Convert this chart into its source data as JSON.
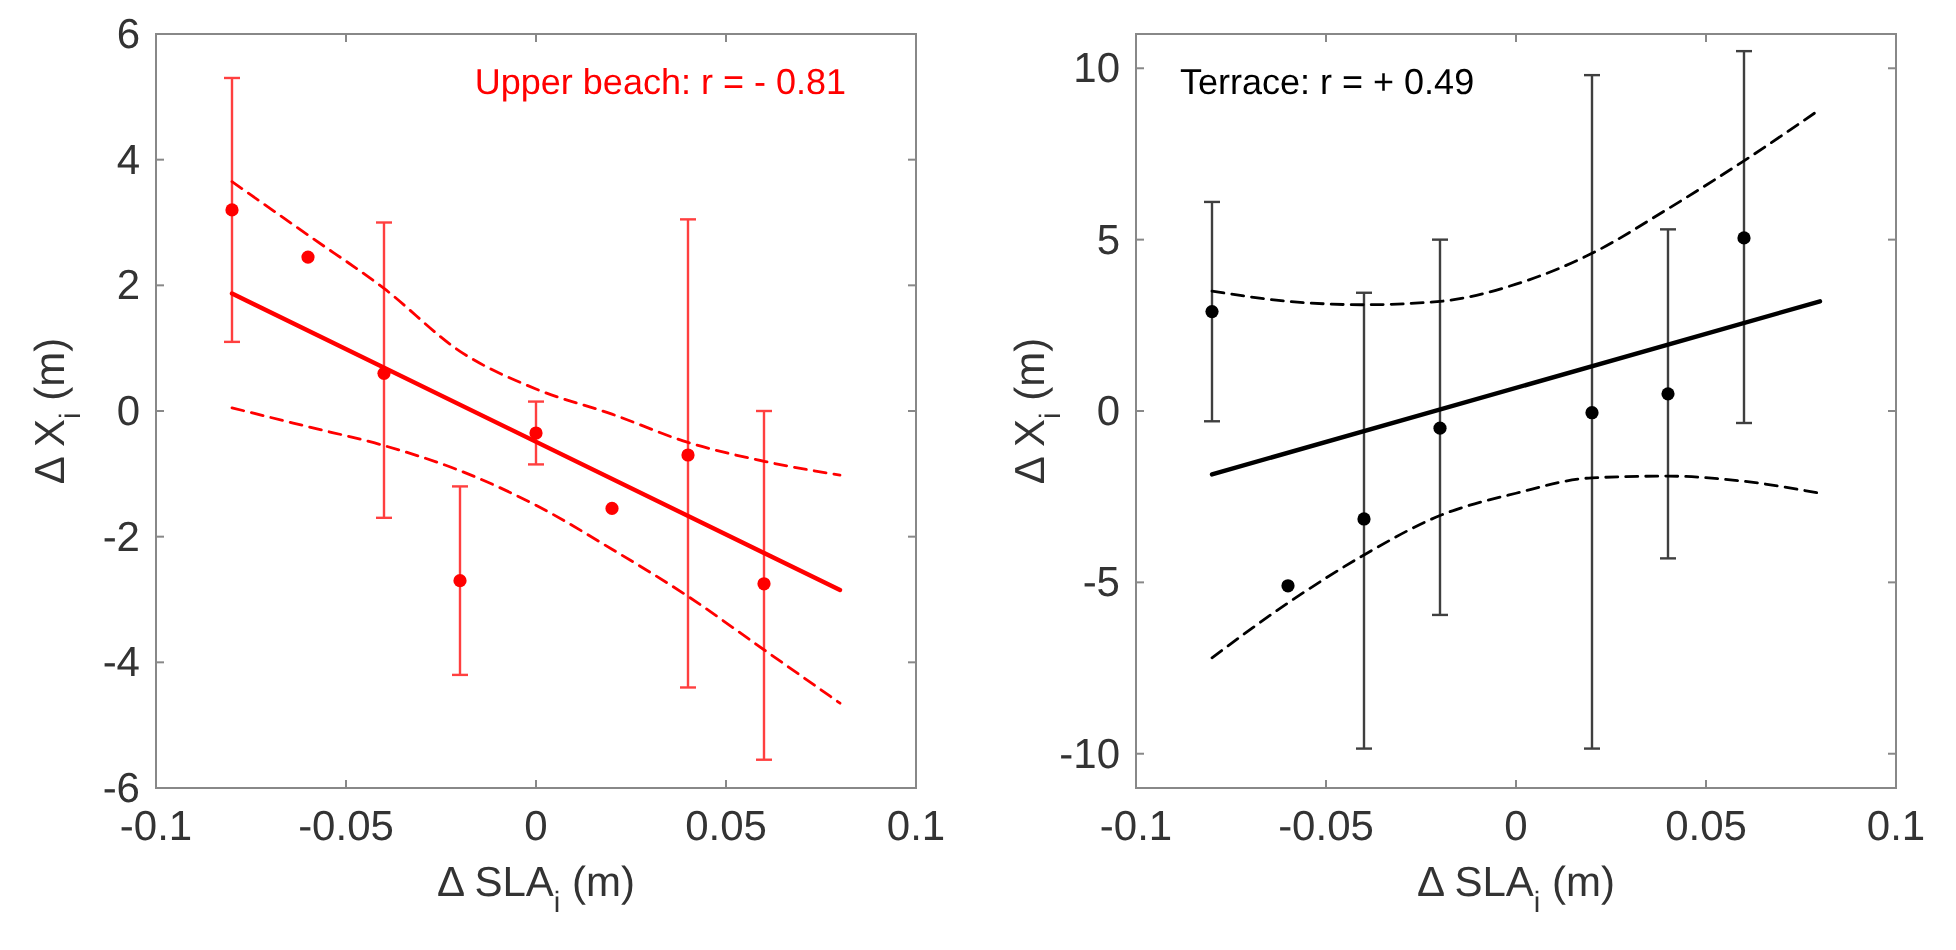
{
  "chart_data": [
    {
      "type": "scatter",
      "xlabel": "Δ SLA$_{i}$ (m)",
      "ylabel": "Δ X$_{i}$ (m)",
      "annotations": [
        "Upper beach: r = - 0.81"
      ],
      "xlim": [
        -0.1,
        0.1
      ],
      "xticks": [
        -0.1,
        -0.05,
        0,
        0.05,
        0.1
      ],
      "ylim": [
        -6,
        6
      ],
      "yticks": [
        -6,
        -4,
        -2,
        0,
        2,
        4,
        6
      ],
      "grid": false,
      "marker": "circle",
      "series": [
        {
          "color": "#ff0000",
          "x": [
            -0.08,
            -0.06,
            -0.04,
            -0.02,
            0,
            0.02,
            0.04,
            0.06
          ],
          "values": [
            3.2,
            2.45,
            0.6,
            -2.7,
            -0.35,
            -1.55,
            -0.7,
            -2.75
          ],
          "errors": [
            [
              1.1,
              5.3
            ],
            null,
            [
              -1.7,
              3.0
            ],
            [
              -4.2,
              -1.2
            ],
            [
              -0.85,
              0.15
            ],
            null,
            [
              -4.4,
              3.05
            ],
            [
              -5.55,
              0.0
            ]
          ]
        },
        {
          "type": "line",
          "color": "#ff0000",
          "line_style": "solid",
          "marker": "none",
          "x": [
            -0.08,
            0.08
          ],
          "values": [
            1.87,
            -2.85
          ]
        },
        {
          "type": "line",
          "color": "#ff0000",
          "line_style": "dashed",
          "marker": "none",
          "x": [
            -0.08,
            -0.06,
            -0.04,
            -0.02,
            0,
            0.02,
            0.04,
            0.06,
            0.08
          ],
          "values": [
            3.65,
            2.8,
            1.95,
            0.95,
            0.35,
            -0.05,
            -0.5,
            -0.8,
            -1.02
          ]
        },
        {
          "type": "line",
          "color": "#ff0000",
          "line_style": "dashed",
          "marker": "none",
          "x": [
            -0.08,
            -0.06,
            -0.04,
            -0.02,
            0,
            0.02,
            0.04,
            0.06,
            0.08
          ],
          "values": [
            0.05,
            -0.25,
            -0.55,
            -0.95,
            -1.5,
            -2.2,
            -2.95,
            -3.8,
            -4.65
          ]
        }
      ]
    },
    {
      "type": "scatter",
      "xlabel": "Δ SLA$_{i}$ (m)",
      "ylabel": "Δ X$_{i}$ (m)",
      "annotations": [
        "Terrace: r = + 0.49"
      ],
      "xlim": [
        -0.1,
        0.1
      ],
      "xticks": [
        -0.1,
        -0.05,
        0,
        0.05,
        0.1
      ],
      "ylim": [
        -11,
        11
      ],
      "yticks": [
        -10,
        -5,
        0,
        5,
        10
      ],
      "grid": false,
      "marker": "circle",
      "series": [
        {
          "color": "#000000",
          "x": [
            -0.08,
            -0.06,
            -0.04,
            -0.02,
            0.02,
            0.04,
            0.06
          ],
          "values": [
            2.9,
            -5.1,
            -3.15,
            -0.5,
            -0.05,
            0.5,
            5.05
          ],
          "errors": [
            [
              -0.3,
              6.1
            ],
            null,
            [
              -9.85,
              3.45
            ],
            [
              -5.95,
              5.0
            ],
            [
              -9.85,
              9.8
            ],
            [
              -4.3,
              5.3
            ],
            [
              -0.35,
              10.5
            ]
          ]
        },
        {
          "type": "line",
          "color": "#000000",
          "line_style": "solid",
          "marker": "none",
          "x": [
            -0.08,
            0.08
          ],
          "values": [
            -1.85,
            3.2
          ]
        },
        {
          "type": "line",
          "color": "#000000",
          "line_style": "dashed",
          "marker": "none",
          "x": [
            -0.08,
            -0.06,
            -0.04,
            -0.02,
            0,
            0.02,
            0.04,
            0.06,
            0.08
          ],
          "values": [
            3.5,
            3.2,
            3.1,
            3.2,
            3.7,
            4.6,
            5.9,
            7.3,
            8.8
          ]
        },
        {
          "type": "line",
          "color": "#000000",
          "line_style": "dashed",
          "marker": "none",
          "x": [
            -0.08,
            -0.06,
            -0.04,
            -0.02,
            0,
            0.02,
            0.04,
            0.06,
            0.08
          ],
          "values": [
            -7.2,
            -5.6,
            -4.2,
            -3.05,
            -2.4,
            -1.95,
            -1.9,
            -2.05,
            -2.4
          ]
        }
      ]
    }
  ]
}
